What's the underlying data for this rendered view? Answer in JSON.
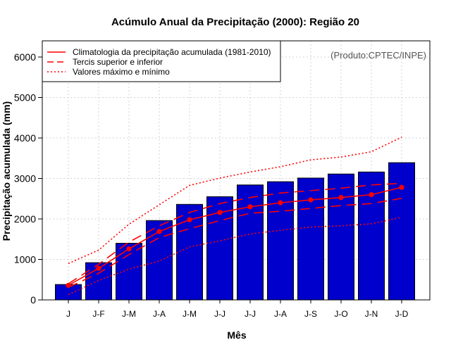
{
  "chart_data": {
    "type": "bar",
    "title": "Acúmulo Anual da Precipitação (2000): Região 20",
    "xlabel": "Mês",
    "ylabel": "Precipitação acumulada (mm)",
    "ylim": [
      0,
      6400
    ],
    "yticks": [
      0,
      1000,
      2000,
      3000,
      4000,
      5000,
      6000
    ],
    "credit": "(Produto:CPTEC/INPE)",
    "categories": [
      "J",
      "J-F",
      "J-M",
      "J-A",
      "J-M",
      "J-J",
      "J-J",
      "J-A",
      "J-S",
      "J-O",
      "J-N",
      "J-D"
    ],
    "bars": {
      "name": "Precipitação acumulada 2000",
      "color": "#0000cc",
      "values": [
        380,
        920,
        1400,
        1960,
        2360,
        2550,
        2840,
        2920,
        3010,
        3110,
        3160,
        3390
      ]
    },
    "climatology": {
      "name": "Climatologia da precipitação acumulada (1981-2010)",
      "color": "#ff0000",
      "values": [
        360,
        780,
        1260,
        1690,
        1980,
        2160,
        2300,
        2400,
        2470,
        2530,
        2600,
        2780
      ]
    },
    "tercile_upper": {
      "name": "Tercis superior e inferior",
      "color": "#ff0000",
      "values": [
        400,
        880,
        1430,
        1830,
        2160,
        2380,
        2530,
        2640,
        2700,
        2760,
        2840,
        2880
      ]
    },
    "tercile_lower": {
      "name": "Tercis superior e inferior",
      "color": "#ff0000",
      "values": [
        310,
        660,
        1120,
        1540,
        1760,
        1960,
        2140,
        2190,
        2260,
        2330,
        2380,
        2510
      ]
    },
    "max": {
      "name": "Valores máximo e mínimo",
      "color": "#ff0000",
      "values": [
        900,
        1230,
        1870,
        2350,
        2830,
        3010,
        3160,
        3290,
        3460,
        3530,
        3660,
        4020
      ]
    },
    "min": {
      "name": "Valores máximo e mínimo",
      "color": "#ff0000",
      "values": [
        130,
        480,
        760,
        960,
        1310,
        1460,
        1630,
        1720,
        1800,
        1830,
        1880,
        2040
      ]
    },
    "legend": {
      "position": "top-left",
      "entries": [
        "Climatologia da precipitação acumulada (1981-2010)",
        "Tercis superior e inferior",
        "Valores máximo e mínimo"
      ]
    }
  }
}
